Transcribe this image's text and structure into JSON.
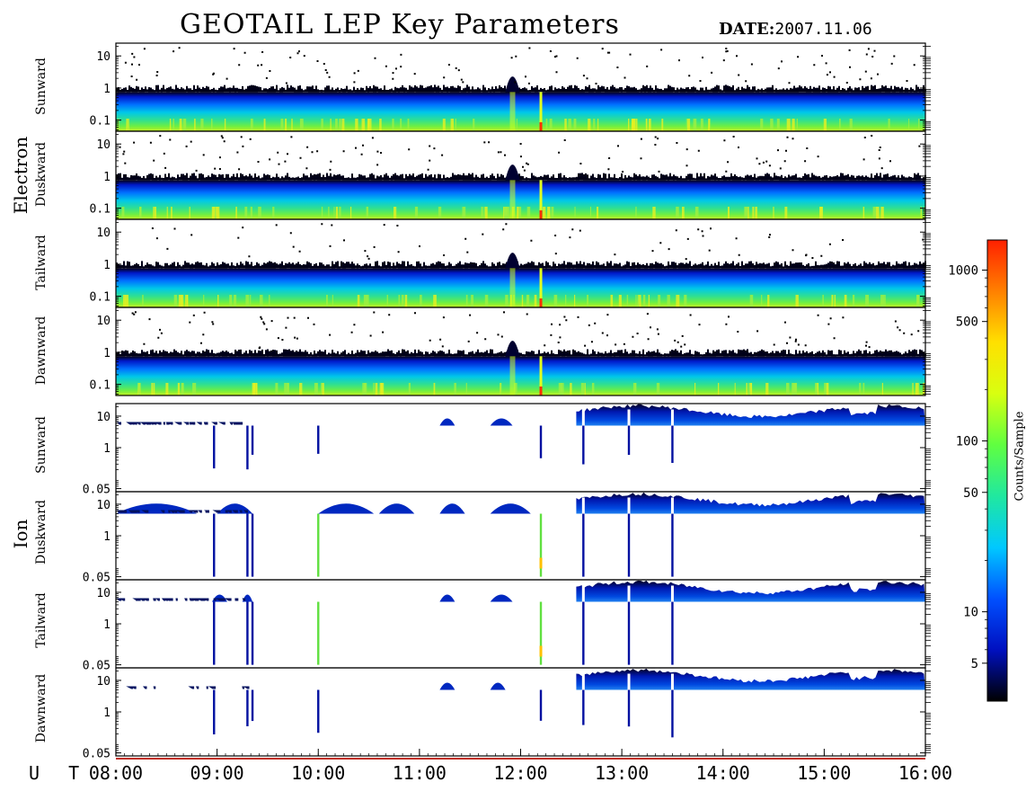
{
  "title": "GEOTAIL LEP Key Parameters",
  "date_label": "DATE:",
  "date_value": "2007.11.06",
  "time_axis_label": "U T",
  "colorbar": {
    "label": "Counts/Sample",
    "ticks": [
      "1000",
      "500",
      "100",
      "50",
      "10",
      "5"
    ],
    "tick_values": [
      1000,
      500,
      100,
      50,
      10,
      5
    ],
    "range": [
      3,
      1500
    ],
    "scale": "log",
    "colors": [
      "#000000",
      "#0010c0",
      "#0050ff",
      "#00c8ff",
      "#20e8a0",
      "#60ff40",
      "#d8ff10",
      "#ffe000",
      "#ff8000",
      "#ff2000"
    ]
  },
  "groups": [
    {
      "name": "Electron",
      "panels": [
        "Sunward",
        "Duskward",
        "Tailward",
        "Dawnward"
      ]
    },
    {
      "name": "Ion",
      "panels": [
        "Sunward",
        "Duskward",
        "Tailward",
        "Dawnward"
      ]
    }
  ],
  "chart_data": {
    "type": "heatmap",
    "title": "GEOTAIL LEP Key Parameters",
    "xlabel": "U T",
    "x_ticks": [
      "08:00",
      "09:00",
      "10:00",
      "11:00",
      "12:00",
      "13:00",
      "14:00",
      "15:00",
      "16:00"
    ],
    "xlim_hours": [
      8,
      16
    ],
    "electron_panels": {
      "y_ticks": [
        "10",
        "1",
        "0.1"
      ],
      "y_tick_values": [
        10,
        1,
        0.1
      ],
      "ylim": [
        0.045,
        25
      ],
      "y_scale": "log"
    },
    "ion_panels": {
      "y_ticks": [
        "10",
        "1",
        "0.05"
      ],
      "y_tick_values": [
        10,
        1,
        0.05
      ],
      "ylim": [
        0.04,
        25
      ],
      "y_scale": "log"
    },
    "features": {
      "electron_enhancement_hours": [
        11.92,
        12.2
      ],
      "ion_dropout_hours": [
        8.97,
        9.3,
        9.35,
        10.0,
        12.2,
        12.62,
        13.07,
        13.5
      ],
      "ion_continuous_start_hour": 12.55
    }
  }
}
